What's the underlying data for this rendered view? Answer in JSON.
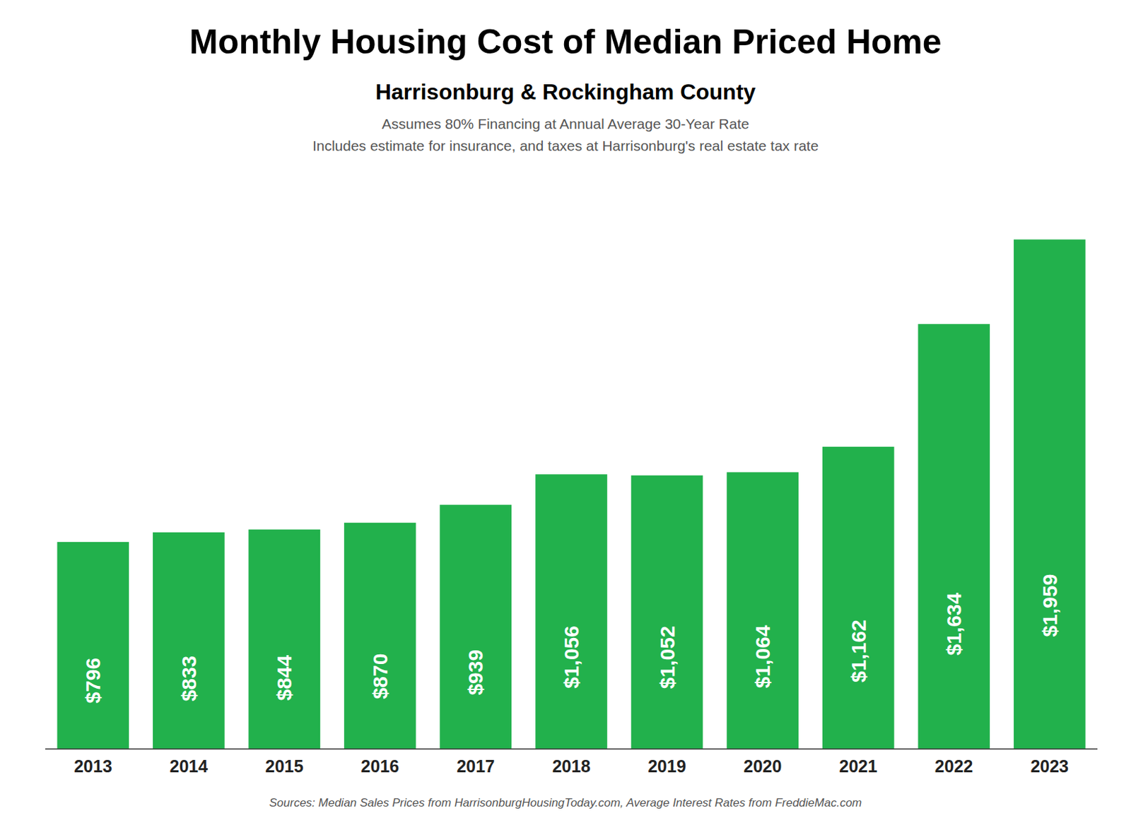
{
  "chart_data": {
    "type": "bar",
    "title": "Monthly Housing Cost of Median Priced Home",
    "subtitle": [
      "Harrisonburg & Rockingham County",
      "Assumes 80% Financing at Annual Average 30-Year Rate",
      "Includes estimate for insurance, and taxes at Harrisonburg's real estate tax rate"
    ],
    "annotations": [
      "Sources: Median Sales Prices from HarrisonburgHousingToday.com, Average Interest Rates from FreddieMac.com"
    ],
    "categories": [
      "2013",
      "2014",
      "2015",
      "2016",
      "2017",
      "2018",
      "2019",
      "2020",
      "2021",
      "2022",
      "2023"
    ],
    "values": [
      796,
      833,
      844,
      870,
      939,
      1056,
      1052,
      1064,
      1162,
      1634,
      1959
    ],
    "value_labels": [
      "$796",
      "$833",
      "$844",
      "$870",
      "$939",
      "$1,056",
      "$1,052",
      "$1,064",
      "$1,162",
      "$1,634",
      "$1,959"
    ],
    "data_labels": true,
    "color": "#22b14c",
    "ylim": [
      0,
      2115.72
    ],
    "grid": false,
    "tick_labels": "x"
  }
}
